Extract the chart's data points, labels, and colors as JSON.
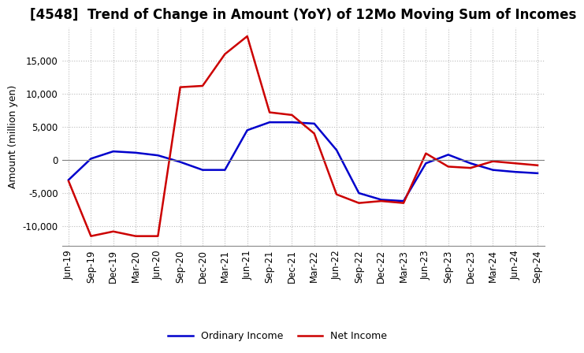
{
  "title": "[4548]  Trend of Change in Amount (YoY) of 12Mo Moving Sum of Incomes",
  "ylabel": "Amount (million yen)",
  "ylim": [
    -13000,
    20000
  ],
  "yticks": [
    -10000,
    -5000,
    0,
    5000,
    10000,
    15000
  ],
  "x_labels": [
    "Jun-19",
    "Sep-19",
    "Dec-19",
    "Mar-20",
    "Jun-20",
    "Sep-20",
    "Dec-20",
    "Mar-21",
    "Jun-21",
    "Sep-21",
    "Dec-21",
    "Mar-22",
    "Jun-22",
    "Sep-22",
    "Dec-22",
    "Mar-23",
    "Jun-23",
    "Sep-23",
    "Dec-23",
    "Mar-24",
    "Jun-24",
    "Sep-24"
  ],
  "ordinary_income": [
    -3000,
    200,
    1300,
    1100,
    700,
    -300,
    -1500,
    -1500,
    4500,
    5700,
    5700,
    5500,
    1500,
    -5000,
    -6000,
    -6200,
    -500,
    800,
    -500,
    -1500,
    -1800,
    -2000
  ],
  "net_income": [
    -3200,
    -11500,
    -10800,
    -11500,
    -11500,
    11000,
    11200,
    16000,
    18700,
    7200,
    6800,
    4000,
    -5200,
    -6500,
    -6200,
    -6500,
    1000,
    -1000,
    -1200,
    -200,
    -500,
    -800
  ],
  "ordinary_income_color": "#0000cc",
  "net_income_color": "#cc0000",
  "grid_color": "#bbbbbb",
  "background_color": "#ffffff",
  "title_fontsize": 12,
  "axis_fontsize": 9,
  "tick_fontsize": 8.5
}
